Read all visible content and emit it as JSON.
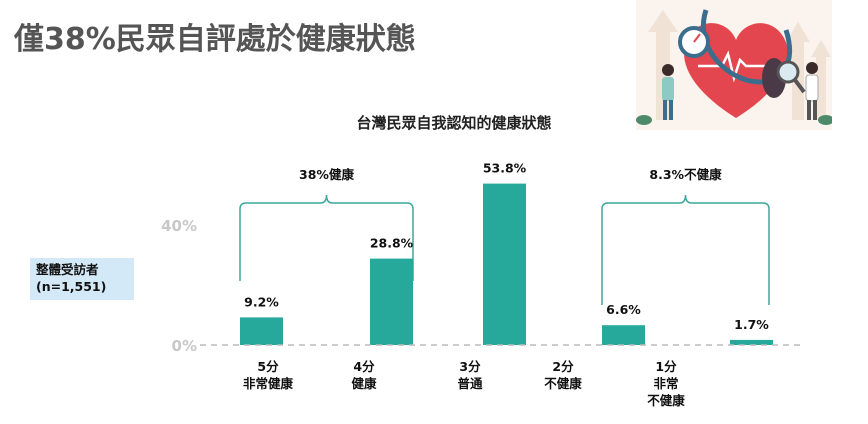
{
  "page": {
    "title": "僅38%民眾自評處於健康狀態"
  },
  "sample": {
    "line1": "整體受訪者",
    "line2": "(n=1,551)"
  },
  "groups": {
    "healthy": "38%健康",
    "unhealthy": "8.3%不健康"
  },
  "colors": {
    "bar": "#26a99b",
    "bracket": "#3aa89c",
    "axis_label": "#c8c8c8",
    "baseline": "#bbbbbb"
  },
  "chart_data": {
    "type": "bar",
    "title": "台灣民眾自我認知的健康狀態",
    "categories": [
      [
        "5分",
        "非常健康"
      ],
      [
        "4分",
        "健康"
      ],
      [
        "3分",
        "普通"
      ],
      [
        "2分",
        "不健康"
      ],
      [
        "1分",
        "非常",
        "不健康"
      ]
    ],
    "values": [
      9.2,
      28.8,
      53.8,
      6.6,
      1.7
    ],
    "value_labels": [
      "9.2%",
      "28.8%",
      "53.8%",
      "6.6%",
      "1.7%"
    ],
    "yticks": [
      "0%",
      "40%"
    ],
    "ylim": [
      0,
      54
    ],
    "grid": false,
    "legend": "none"
  }
}
